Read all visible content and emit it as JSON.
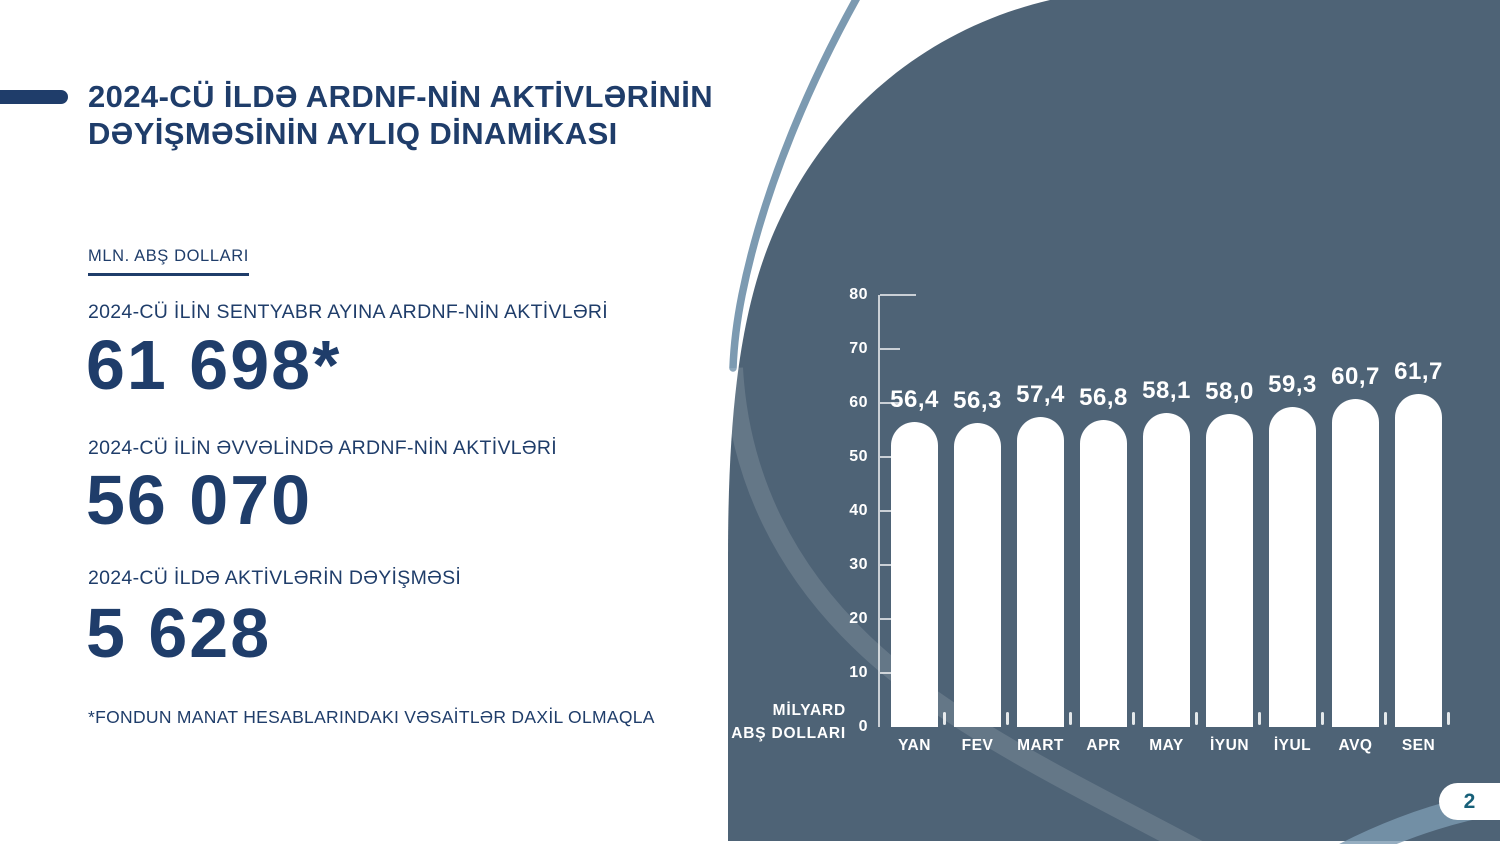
{
  "slide": {
    "title_lines": [
      "2024-CÜ İLDƏ ARDNF-NİN AKTİVLƏRİNİN",
      "DƏYİŞMƏSİNİN AYLIQ DİNAMİKASI"
    ],
    "unit_label": "MLN. ABŞ DOLLARI",
    "stats": [
      {
        "label": "2024-CÜ İLİN SENTYABR AYINA ARDNF-NİN AKTİVLƏRİ",
        "value": "61 698*"
      },
      {
        "label": "2024-CÜ İLİN ƏVVƏLİNDƏ ARDNF-NİN AKTİVLƏRİ",
        "value": "56 070"
      },
      {
        "label": "2024-CÜ İLDƏ AKTİVLƏRİN DƏYİŞMƏSİ",
        "value": "5 628"
      }
    ],
    "footnote": "*FONDUN MANAT HESABLARINDAKI VƏSAİTLƏR DAXİL OLMAQLA",
    "page_number": "2"
  },
  "chart_data": {
    "type": "bar",
    "title": "",
    "categories": [
      "YAN",
      "FEV",
      "MART",
      "APR",
      "MAY",
      "İYUN",
      "İYUL",
      "AVQ",
      "SEN"
    ],
    "values": [
      56.4,
      56.3,
      57.4,
      56.8,
      58.1,
      58.0,
      59.3,
      60.7,
      61.7
    ],
    "value_labels": [
      "56,4",
      "56,3",
      "57,4",
      "56,8",
      "58,1",
      "58,0",
      "59,3",
      "60,7",
      "61,7"
    ],
    "xlabel": "",
    "ylabel": "MİLYARD ABŞ DOLLARI",
    "ylabel_lines": "MİLYARD\nABŞ DOLLARI",
    "ylim": [
      0,
      80
    ],
    "yticks": [
      0,
      10,
      20,
      30,
      40,
      50,
      60,
      70,
      80
    ],
    "grid": false,
    "legend": "none",
    "bar_color": "#ffffff",
    "label_color": "#ffffff"
  },
  "colors": {
    "navy": "#1F3D6A",
    "panel": "#4E6376",
    "accent_stroke": "#7C9AB1",
    "axis_line": "rgba(255,255,255,0.70)",
    "page_number_color": "#176079",
    "bar_fill": "#ffffff"
  }
}
